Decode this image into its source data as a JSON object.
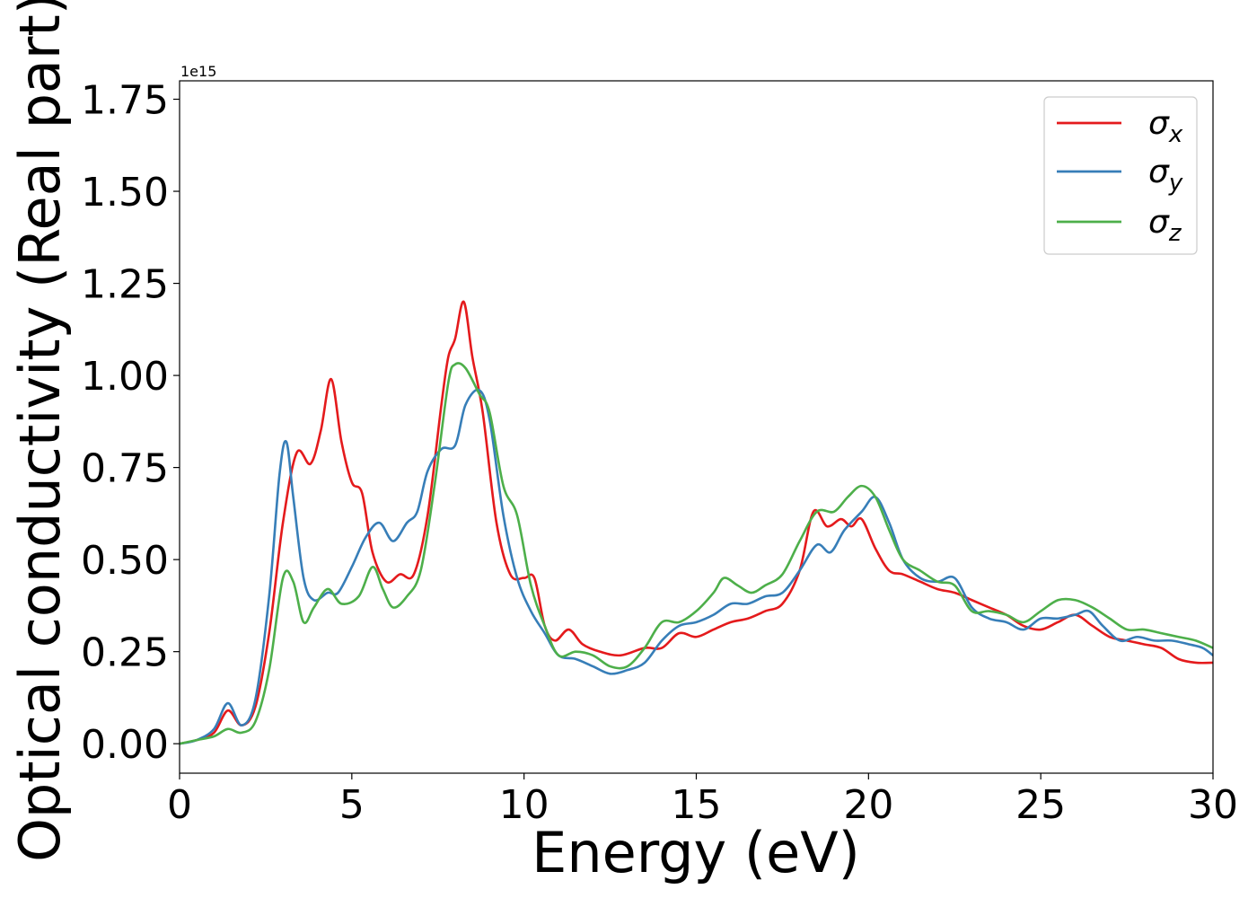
{
  "chart_data": {
    "type": "line",
    "title": "",
    "xlabel": "Energy (eV)",
    "ylabel": "Optical conductivity (Real part)",
    "y_offset_label": "1e15",
    "xlim": [
      0,
      30
    ],
    "ylim": [
      -0.08,
      1.8
    ],
    "y_multiplier": 1000000000000000.0,
    "xticks": [
      0,
      5,
      10,
      15,
      20,
      25,
      30
    ],
    "xtick_labels": [
      "0",
      "5",
      "10",
      "15",
      "20",
      "25",
      "30"
    ],
    "yticks": [
      0.0,
      0.25,
      0.5,
      0.75,
      1.0,
      1.25,
      1.5,
      1.75
    ],
    "ytick_labels": [
      "0.00",
      "0.25",
      "0.50",
      "0.75",
      "1.00",
      "1.25",
      "1.50",
      "1.75"
    ],
    "grid": false,
    "legend_position": "top-right",
    "series": [
      {
        "name": "σ",
        "subscript": "x",
        "color": "#e41a1c",
        "x": [
          0,
          0.5,
          1.0,
          1.4,
          1.8,
          2.2,
          2.6,
          3.0,
          3.4,
          3.8,
          4.1,
          4.4,
          4.7,
          5.0,
          5.3,
          5.6,
          6.0,
          6.4,
          6.8,
          7.2,
          7.6,
          7.8,
          8.0,
          8.25,
          8.5,
          8.8,
          9.2,
          9.6,
          10.0,
          10.3,
          10.6,
          10.9,
          11.3,
          11.7,
          12.2,
          12.8,
          13.5,
          14.0,
          14.5,
          15.0,
          15.5,
          16.0,
          16.5,
          17.0,
          17.5,
          18.0,
          18.4,
          18.8,
          19.2,
          19.5,
          19.8,
          20.2,
          20.6,
          21.0,
          21.5,
          22.0,
          22.5,
          23.0,
          23.5,
          24.0,
          24.5,
          25.0,
          25.5,
          26.0,
          26.5,
          27.0,
          27.5,
          28.0,
          28.5,
          29.0,
          29.5,
          30.0
        ],
        "values": [
          0.0,
          0.01,
          0.03,
          0.09,
          0.05,
          0.1,
          0.3,
          0.6,
          0.79,
          0.76,
          0.85,
          0.99,
          0.82,
          0.71,
          0.68,
          0.52,
          0.44,
          0.46,
          0.46,
          0.62,
          0.92,
          1.05,
          1.1,
          1.2,
          1.05,
          0.9,
          0.6,
          0.46,
          0.45,
          0.45,
          0.32,
          0.28,
          0.31,
          0.27,
          0.25,
          0.24,
          0.26,
          0.26,
          0.3,
          0.29,
          0.31,
          0.33,
          0.34,
          0.36,
          0.38,
          0.47,
          0.63,
          0.59,
          0.61,
          0.59,
          0.61,
          0.53,
          0.47,
          0.46,
          0.44,
          0.42,
          0.41,
          0.39,
          0.37,
          0.35,
          0.32,
          0.31,
          0.33,
          0.35,
          0.32,
          0.29,
          0.28,
          0.27,
          0.26,
          0.23,
          0.22,
          0.22
        ]
      },
      {
        "name": "σ",
        "subscript": "y",
        "color": "#377eb8",
        "x": [
          0,
          0.5,
          1.0,
          1.4,
          1.8,
          2.2,
          2.6,
          2.9,
          3.1,
          3.3,
          3.6,
          3.9,
          4.3,
          4.6,
          5.0,
          5.4,
          5.8,
          6.2,
          6.6,
          6.9,
          7.2,
          7.6,
          8.0,
          8.3,
          8.7,
          9.0,
          9.4,
          9.8,
          10.2,
          10.6,
          11.0,
          11.5,
          12.0,
          12.5,
          13.0,
          13.5,
          14.0,
          14.5,
          15.0,
          15.5,
          16.0,
          16.5,
          17.0,
          17.5,
          18.0,
          18.5,
          18.9,
          19.3,
          19.8,
          20.2,
          20.6,
          21.0,
          21.5,
          22.0,
          22.5,
          23.0,
          23.5,
          24.0,
          24.5,
          25.0,
          25.5,
          26.0,
          26.4,
          26.8,
          27.3,
          27.8,
          28.3,
          28.8,
          29.3,
          29.7,
          30.0
        ],
        "values": [
          0.0,
          0.01,
          0.04,
          0.11,
          0.05,
          0.12,
          0.4,
          0.73,
          0.82,
          0.67,
          0.45,
          0.39,
          0.41,
          0.41,
          0.48,
          0.56,
          0.6,
          0.55,
          0.6,
          0.63,
          0.74,
          0.8,
          0.81,
          0.92,
          0.96,
          0.88,
          0.62,
          0.45,
          0.36,
          0.3,
          0.24,
          0.23,
          0.21,
          0.19,
          0.2,
          0.22,
          0.28,
          0.32,
          0.33,
          0.35,
          0.38,
          0.38,
          0.4,
          0.41,
          0.47,
          0.54,
          0.52,
          0.58,
          0.63,
          0.67,
          0.6,
          0.5,
          0.45,
          0.44,
          0.45,
          0.37,
          0.34,
          0.33,
          0.31,
          0.34,
          0.34,
          0.35,
          0.36,
          0.32,
          0.28,
          0.29,
          0.28,
          0.28,
          0.27,
          0.26,
          0.24
        ]
      },
      {
        "name": "σ",
        "subscript": "z",
        "color": "#4daf4a",
        "x": [
          0,
          0.5,
          1.0,
          1.4,
          1.8,
          2.2,
          2.6,
          3.0,
          3.3,
          3.6,
          3.9,
          4.3,
          4.7,
          5.2,
          5.6,
          5.9,
          6.2,
          6.6,
          7.0,
          7.4,
          7.8,
          8.0,
          8.3,
          8.7,
          9.0,
          9.4,
          9.8,
          10.2,
          10.6,
          11.0,
          11.5,
          12.0,
          12.5,
          13.0,
          13.5,
          14.0,
          14.5,
          15.0,
          15.5,
          15.8,
          16.2,
          16.6,
          17.0,
          17.5,
          18.0,
          18.5,
          19.0,
          19.4,
          19.8,
          20.2,
          20.6,
          21.0,
          21.5,
          22.0,
          22.5,
          23.0,
          23.5,
          24.0,
          24.5,
          25.0,
          25.5,
          26.0,
          26.5,
          27.0,
          27.5,
          28.0,
          28.5,
          29.0,
          29.5,
          30.0
        ],
        "values": [
          0.0,
          0.01,
          0.02,
          0.04,
          0.03,
          0.06,
          0.2,
          0.45,
          0.44,
          0.33,
          0.37,
          0.42,
          0.38,
          0.4,
          0.48,
          0.42,
          0.37,
          0.4,
          0.47,
          0.7,
          0.98,
          1.03,
          1.02,
          0.95,
          0.9,
          0.7,
          0.62,
          0.43,
          0.32,
          0.24,
          0.25,
          0.24,
          0.21,
          0.21,
          0.26,
          0.33,
          0.33,
          0.36,
          0.41,
          0.45,
          0.43,
          0.41,
          0.43,
          0.46,
          0.55,
          0.63,
          0.63,
          0.67,
          0.7,
          0.67,
          0.58,
          0.5,
          0.47,
          0.44,
          0.43,
          0.36,
          0.36,
          0.35,
          0.33,
          0.36,
          0.39,
          0.39,
          0.37,
          0.34,
          0.31,
          0.31,
          0.3,
          0.29,
          0.28,
          0.26
        ]
      }
    ]
  }
}
